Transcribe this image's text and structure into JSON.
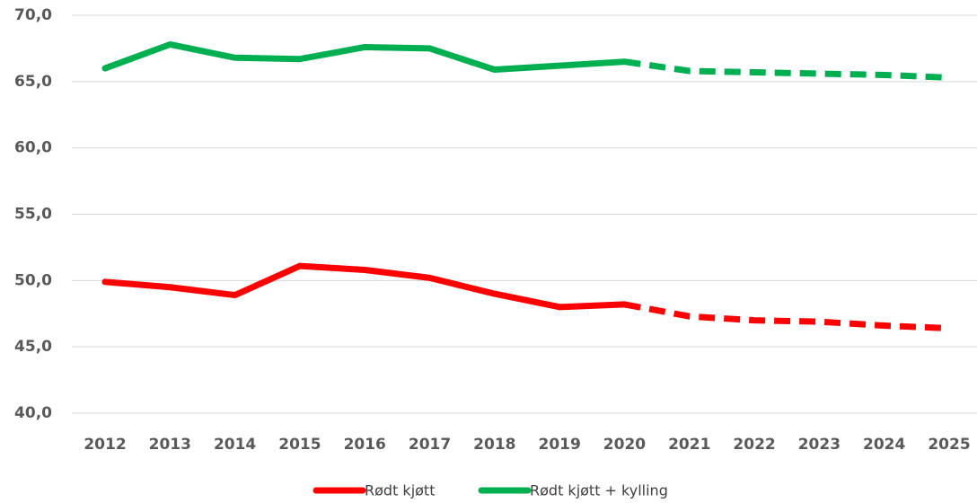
{
  "chart_data": {
    "type": "line",
    "categories": [
      "2012",
      "2013",
      "2014",
      "2015",
      "2016",
      "2017",
      "2018",
      "2019",
      "2020",
      "2021",
      "2022",
      "2023",
      "2024",
      "2025"
    ],
    "series": [
      {
        "name": "Rødt kjøtt",
        "color": "#ff0000",
        "values": [
          49.9,
          49.5,
          48.9,
          51.1,
          50.8,
          50.2,
          49.0,
          48.0,
          48.2,
          47.3,
          47.0,
          46.9,
          46.6,
          46.4
        ],
        "dashed": [
          false,
          false,
          false,
          false,
          false,
          false,
          false,
          false,
          false,
          true,
          true,
          true,
          true,
          true
        ]
      },
      {
        "name": "Rødt kjøtt + kylling",
        "color": "#00b050",
        "values": [
          66.0,
          67.8,
          66.8,
          66.7,
          67.6,
          67.5,
          65.9,
          66.2,
          66.5,
          65.8,
          65.7,
          65.6,
          65.5,
          65.3
        ],
        "dashed": [
          false,
          false,
          false,
          false,
          false,
          false,
          false,
          false,
          false,
          true,
          true,
          true,
          true,
          true
        ]
      }
    ],
    "ylim": [
      40,
      70
    ],
    "yticks": [
      {
        "value": 40,
        "label": "40,0"
      },
      {
        "value": 45,
        "label": "45,0"
      },
      {
        "value": 50,
        "label": "50,0"
      },
      {
        "value": 55,
        "label": "55,0"
      },
      {
        "value": 60,
        "label": "60,0"
      },
      {
        "value": 65,
        "label": "65,0"
      },
      {
        "value": 70,
        "label": "70,0"
      }
    ],
    "grid": true,
    "legend": "bottom"
  }
}
